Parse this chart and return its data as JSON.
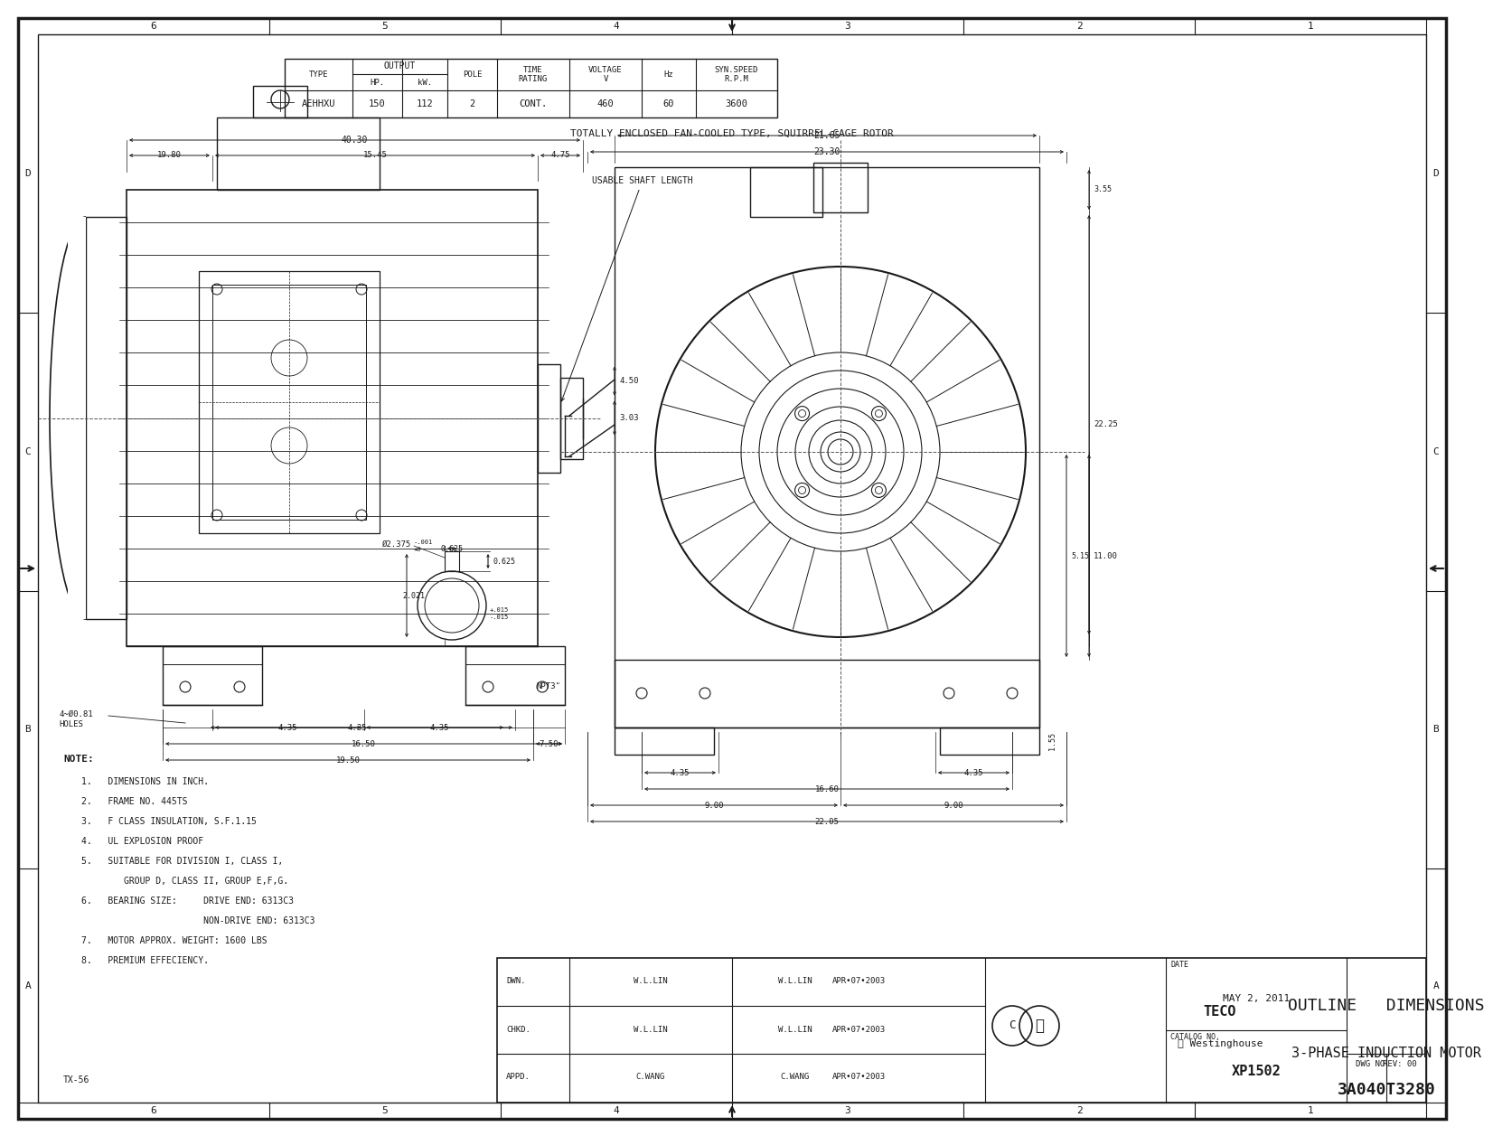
{
  "bg_color": "#ffffff",
  "line_color": "#1a1a1a",
  "border_color": "#1a1a1a",
  "font_family": "monospace",
  "table_headers": [
    "TYPE",
    "OUTPUT",
    "HP.",
    "kW.",
    "POLE",
    "TIME\nRATING",
    "VOLTAGE\nV",
    "Hz",
    "SYN.SPEED\nR.P.M"
  ],
  "table_values": [
    "AEHHXU",
    "150",
    "112",
    "2",
    "CONT.",
    "460",
    "60",
    "3600"
  ],
  "subtitle": "TOTALLY ENCLOSED FAN-COOLED TYPE, SQUIRREL-CAGE ROTOR",
  "notes": [
    "1.   DIMENSIONS IN INCH.",
    "2.   FRAME NO. 445TS",
    "3.   F CLASS INSULATION, S.F.1.15",
    "4.   UL EXPLOSION PROOF",
    "5.   SUITABLE FOR DIVISION I, CLASS I,",
    "        GROUP D, CLASS II, GROUP E,F,G.",
    "6.   BEARING SIZE:     DRIVE END: 6313C3",
    "                       NON-DRIVE END: 6313C3",
    "7.   MOTOR APPROX. WEIGHT: 1600 LBS",
    "8.   PREMIUM EFFECIENCY."
  ],
  "col_labels": [
    "6",
    "5",
    "4",
    "3",
    "2",
    "1"
  ],
  "row_labels": [
    "D",
    "C",
    "B",
    "A"
  ],
  "title_block": {
    "date": "MAY 2, 2011",
    "catalog_no": "XP1502",
    "dwg_no": "3A040T3280",
    "rev": "REV: 00",
    "dwn_name": "W.L.LIN",
    "chkd_name": "W.L.LIN",
    "appd_name": "C.WANG",
    "date_stamp": "APR•07•2003",
    "title1": "OUTLINE   DIMENSIONS",
    "title2": "3-PHASE INDUCTION MOTOR"
  }
}
